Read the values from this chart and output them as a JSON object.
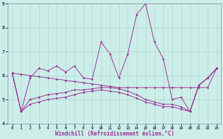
{
  "xlabel": "Windchill (Refroidissement éolien,°C)",
  "xlim": [
    -0.5,
    23.5
  ],
  "ylim": [
    4,
    9
  ],
  "yticks": [
    4,
    5,
    6,
    7,
    8,
    9
  ],
  "xticks": [
    0,
    1,
    2,
    3,
    4,
    5,
    6,
    7,
    8,
    9,
    10,
    11,
    12,
    13,
    14,
    15,
    16,
    17,
    18,
    19,
    20,
    21,
    22,
    23
  ],
  "bg": "#cceee8",
  "lc": "#993399",
  "gc": "#aacccc",
  "curve_wiggly_x": [
    0,
    1,
    2,
    3,
    4,
    5,
    6,
    7,
    8,
    9,
    10,
    11,
    12,
    13,
    14,
    15,
    16,
    17,
    18,
    19,
    20,
    21,
    22,
    23
  ],
  "curve_wiggly_y": [
    6.1,
    4.5,
    5.9,
    6.3,
    6.2,
    6.4,
    6.15,
    6.4,
    5.9,
    5.85,
    7.4,
    6.9,
    5.9,
    6.9,
    8.55,
    9.0,
    7.4,
    6.7,
    5.0,
    5.1,
    4.5,
    5.6,
    5.9,
    6.3
  ],
  "curve_flat_x": [
    0,
    1,
    2,
    3,
    4,
    5,
    6,
    7,
    8,
    9,
    10,
    11,
    12,
    13,
    14,
    15,
    16,
    17,
    18,
    19,
    20,
    21,
    22,
    23
  ],
  "curve_flat_y": [
    6.1,
    6.05,
    6.0,
    5.95,
    5.9,
    5.85,
    5.8,
    5.75,
    5.7,
    5.65,
    5.6,
    5.55,
    5.5,
    5.5,
    5.5,
    5.5,
    5.5,
    5.5,
    5.5,
    5.5,
    5.5,
    5.5,
    5.5,
    6.3
  ],
  "curve_low1_x": [
    0,
    1,
    2,
    3,
    4,
    5,
    6,
    7,
    8,
    9,
    10,
    11,
    12,
    13,
    14,
    15,
    16,
    17,
    18,
    19,
    20,
    21,
    22,
    23
  ],
  "curve_low1_y": [
    6.1,
    4.5,
    5.0,
    5.1,
    5.2,
    5.25,
    5.3,
    5.4,
    5.4,
    5.45,
    5.5,
    5.5,
    5.45,
    5.35,
    5.2,
    5.0,
    4.9,
    4.8,
    4.8,
    4.7,
    4.5,
    5.6,
    5.9,
    6.3
  ],
  "curve_low2_x": [
    0,
    1,
    2,
    3,
    4,
    5,
    6,
    7,
    8,
    9,
    10,
    11,
    12,
    13,
    14,
    15,
    16,
    17,
    18,
    19,
    20,
    21,
    22,
    23
  ],
  "curve_low2_y": [
    6.1,
    4.5,
    4.8,
    4.9,
    5.0,
    5.05,
    5.1,
    5.2,
    5.3,
    5.35,
    5.4,
    5.35,
    5.3,
    5.2,
    5.05,
    4.9,
    4.8,
    4.7,
    4.7,
    4.6,
    4.5,
    5.6,
    5.9,
    6.3
  ],
  "marker": "D",
  "ms": 1.8
}
